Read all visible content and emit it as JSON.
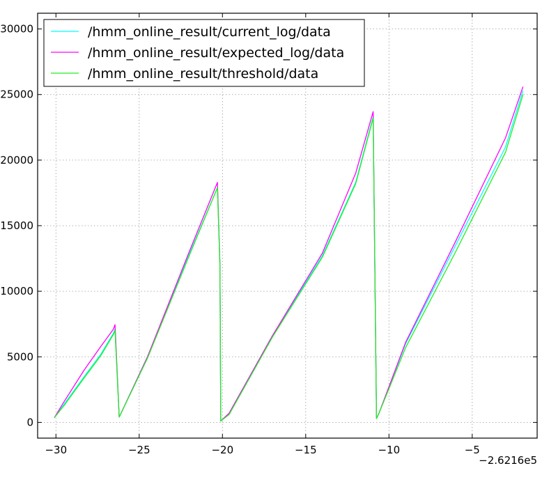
{
  "chart_data": {
    "type": "line",
    "title": "",
    "xlabel": "",
    "ylabel": "",
    "x_offset_label": "−2.6216e5",
    "xlim": [
      -31.1,
      -1.1
    ],
    "ylim": [
      -1200,
      31200
    ],
    "xticks": [
      -30,
      -25,
      -20,
      -15,
      -10,
      -5
    ],
    "xtick_labels": [
      "−30",
      "−25",
      "−20",
      "−15",
      "−10",
      "−5"
    ],
    "yticks": [
      0,
      5000,
      10000,
      15000,
      20000,
      25000,
      30000
    ],
    "ytick_labels": [
      "0",
      "5000",
      "10000",
      "15000",
      "20000",
      "25000",
      "30000"
    ],
    "grid": true,
    "legend_position": "top-left",
    "series": [
      {
        "name": "/hmm_online_result/current_log/data",
        "color": "#00ffff",
        "x": [
          -30.1,
          -29.5,
          -28.3,
          -27.3,
          -26.55,
          -26.45,
          -26.2,
          -24.5,
          -22.0,
          -20.3,
          -20.15,
          -20.1,
          -19.6,
          -17.0,
          -14.0,
          -12.0,
          -10.95,
          -10.85,
          -10.75,
          -10.6,
          -9.0,
          -6.0,
          -3.0,
          -1.95
        ],
        "values": [
          350,
          1400,
          3500,
          5200,
          6800,
          7100,
          400,
          5000,
          12800,
          17900,
          12000,
          100,
          700,
          6600,
          12700,
          18300,
          23300,
          12000,
          300,
          700,
          6000,
          13500,
          21000,
          25300
        ]
      },
      {
        "name": "/hmm_online_result/expected_log/data",
        "color": "#ff00ff",
        "x": [
          -30.1,
          -29.5,
          -28.3,
          -27.3,
          -26.55,
          -26.45,
          -26.2,
          -24.5,
          -22.0,
          -20.3,
          -20.15,
          -20.1,
          -19.6,
          -17.0,
          -14.0,
          -12.0,
          -10.95,
          -10.85,
          -10.75,
          -10.6,
          -9.0,
          -6.0,
          -3.0,
          -1.95
        ],
        "values": [
          350,
          1600,
          4000,
          5800,
          7100,
          7450,
          400,
          5000,
          13000,
          18300,
          12000,
          100,
          700,
          6600,
          12900,
          19000,
          23700,
          12000,
          300,
          700,
          6100,
          13800,
          21700,
          25600
        ]
      },
      {
        "name": "/hmm_online_result/threshold/data",
        "color": "#22ee22",
        "x": [
          -30.1,
          -29.5,
          -28.3,
          -27.3,
          -26.55,
          -26.45,
          -26.2,
          -24.5,
          -22.0,
          -20.3,
          -20.15,
          -20.1,
          -19.6,
          -17.0,
          -14.0,
          -12.0,
          -10.95,
          -10.85,
          -10.75,
          -10.6,
          -9.0,
          -6.0,
          -3.0,
          -1.95
        ],
        "values": [
          350,
          1300,
          3400,
          5100,
          6700,
          7000,
          400,
          4900,
          12700,
          17900,
          12000,
          100,
          600,
          6500,
          12600,
          18200,
          23200,
          12000,
          300,
          700,
          5700,
          13000,
          20600,
          25000
        ]
      }
    ]
  }
}
